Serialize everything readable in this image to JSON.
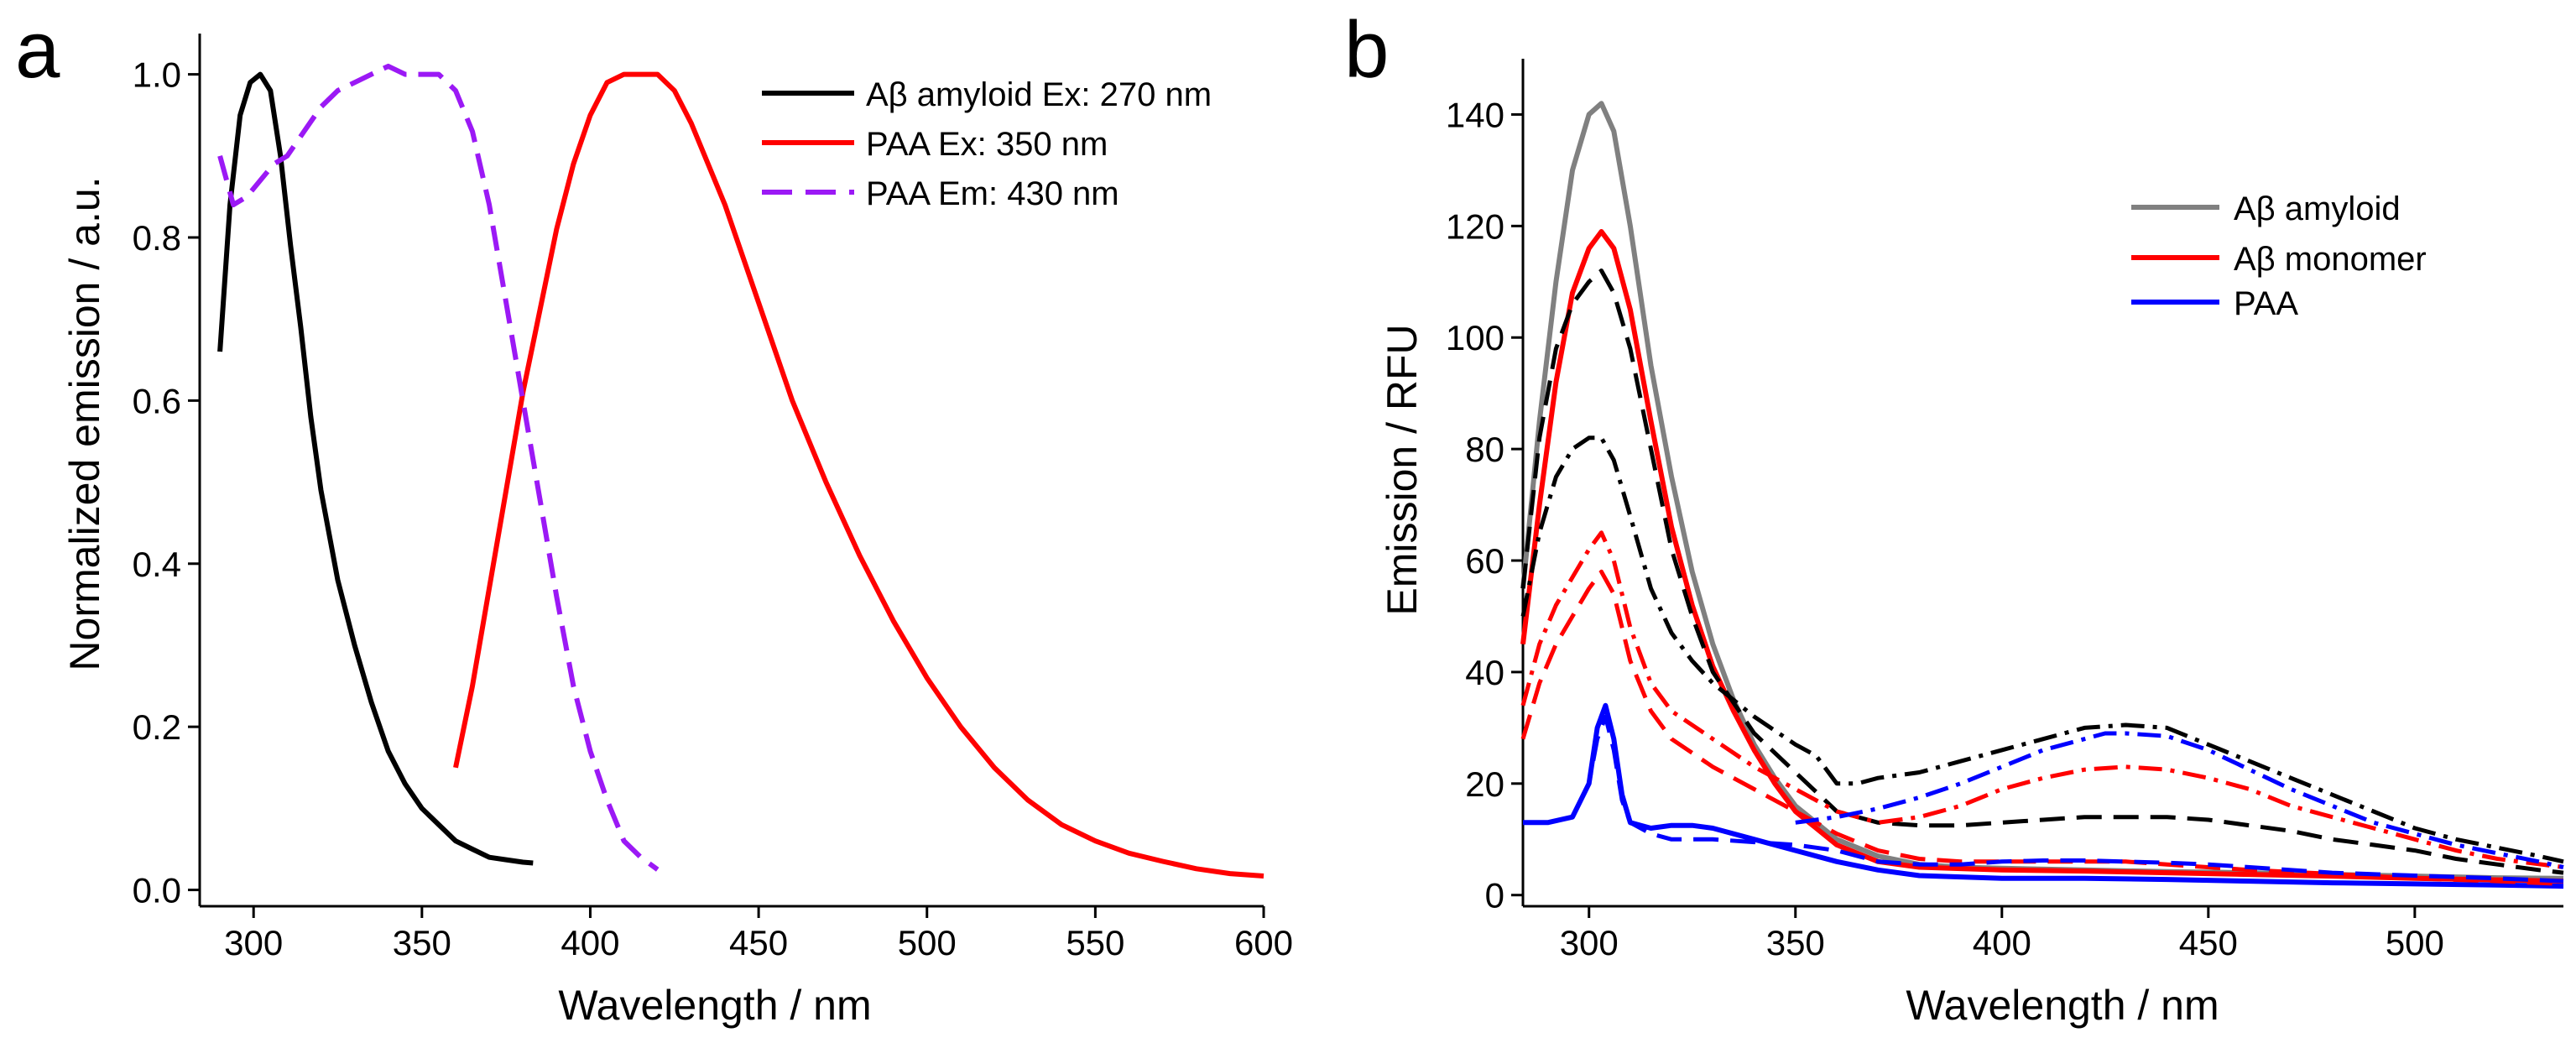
{
  "chart_data": [
    {
      "panel": "a",
      "type": "line",
      "xlabel": "Wavelength / nm",
      "ylabel": "Normalized emission / a.u.",
      "xlim": [
        284,
        600
      ],
      "ylim": [
        -0.02,
        1.05
      ],
      "xticks": [
        300,
        350,
        400,
        450,
        500,
        550,
        600
      ],
      "yticks": [
        0.0,
        0.2,
        0.4,
        0.6,
        0.8,
        1.0
      ],
      "ytick_labels": [
        "0.0",
        "0.2",
        "0.4",
        "0.6",
        "0.8",
        "1.0"
      ],
      "legend_position": "top-right",
      "series": [
        {
          "name": "Aβ amyloid Ex: 270 nm",
          "color": "#000000",
          "style": "solid",
          "x": [
            290,
            293,
            296,
            299,
            302,
            305,
            308,
            311,
            314,
            317,
            320,
            325,
            330,
            335,
            340,
            345,
            350,
            355,
            360,
            365,
            370,
            375,
            380,
            383
          ],
          "y": [
            0.66,
            0.84,
            0.95,
            0.99,
            1.0,
            0.98,
            0.9,
            0.79,
            0.69,
            0.58,
            0.49,
            0.38,
            0.3,
            0.23,
            0.17,
            0.13,
            0.1,
            0.08,
            0.06,
            0.05,
            0.04,
            0.037,
            0.034,
            0.033
          ]
        },
        {
          "name": "PAA Ex: 350 nm",
          "color": "#ff0000",
          "style": "solid",
          "x": [
            360,
            365,
            370,
            375,
            380,
            385,
            390,
            395,
            400,
            405,
            410,
            415,
            420,
            425,
            430,
            435,
            440,
            450,
            460,
            470,
            480,
            490,
            500,
            510,
            520,
            530,
            540,
            550,
            560,
            570,
            580,
            590,
            600
          ],
          "y": [
            0.15,
            0.25,
            0.37,
            0.49,
            0.61,
            0.71,
            0.81,
            0.89,
            0.95,
            0.99,
            1.0,
            1.0,
            1.0,
            0.98,
            0.94,
            0.89,
            0.84,
            0.72,
            0.6,
            0.5,
            0.41,
            0.33,
            0.26,
            0.2,
            0.15,
            0.11,
            0.08,
            0.06,
            0.045,
            0.035,
            0.026,
            0.02,
            0.017
          ]
        },
        {
          "name": "PAA Em: 430 nm",
          "color": "#9b19f5",
          "style": "dashed",
          "x": [
            290,
            294,
            298,
            302,
            306,
            310,
            315,
            320,
            325,
            330,
            335,
            340,
            345,
            350,
            355,
            360,
            365,
            370,
            375,
            380,
            385,
            390,
            395,
            400,
            405,
            410,
            415,
            420
          ],
          "y": [
            0.9,
            0.84,
            0.85,
            0.87,
            0.89,
            0.9,
            0.93,
            0.96,
            0.98,
            0.99,
            1.0,
            1.01,
            1.0,
            1.0,
            1.0,
            0.98,
            0.93,
            0.84,
            0.72,
            0.6,
            0.48,
            0.36,
            0.25,
            0.17,
            0.11,
            0.06,
            0.04,
            0.025
          ]
        }
      ]
    },
    {
      "panel": "b",
      "type": "line",
      "xlabel": "Wavelength / nm",
      "ylabel": "Emission / RFU",
      "xlim": [
        284,
        536
      ],
      "ylim": [
        -2,
        150
      ],
      "xticks": [
        300,
        350,
        400,
        450,
        500
      ],
      "yticks": [
        0,
        20,
        40,
        60,
        80,
        100,
        120,
        140
      ],
      "ytick_labels": [
        "0",
        "20",
        "40",
        "60",
        "80",
        "100",
        "120",
        "140"
      ],
      "legend_position": "center-right",
      "legend": [
        {
          "name": "Aβ amyloid",
          "color": "#808080"
        },
        {
          "name": "Aβ monomer",
          "color": "#ff0000"
        },
        {
          "name": "PAA",
          "color": "#0000ff"
        }
      ],
      "series": [
        {
          "name": "Aβ amyloid (solid)",
          "color": "#808080",
          "style": "solid",
          "width": 6,
          "x": [
            284,
            288,
            292,
            296,
            300,
            303,
            306,
            310,
            315,
            320,
            325,
            330,
            335,
            340,
            345,
            350,
            360,
            370,
            380,
            390,
            400,
            420,
            440,
            460,
            480,
            500,
            520,
            536
          ],
          "y": [
            55,
            85,
            110,
            130,
            140,
            142,
            137,
            120,
            95,
            75,
            58,
            45,
            35,
            27,
            21,
            16,
            10,
            7,
            5.5,
            5,
            4.8,
            4.5,
            4.2,
            4,
            3.7,
            3.4,
            3.1,
            3
          ]
        },
        {
          "name": "Aβ monomer (solid)",
          "color": "#ff0000",
          "style": "solid",
          "width": 6,
          "x": [
            284,
            288,
            292,
            296,
            300,
            303,
            306,
            310,
            315,
            320,
            325,
            330,
            335,
            340,
            345,
            350,
            360,
            370,
            380,
            400,
            420,
            440,
            460,
            480,
            500,
            536
          ],
          "y": [
            45,
            70,
            92,
            108,
            116,
            119,
            116,
            105,
            85,
            66,
            52,
            41,
            33,
            26,
            20,
            15,
            9,
            6,
            5,
            4.5,
            4.3,
            4,
            3.7,
            3.4,
            3,
            2.5
          ]
        },
        {
          "name": "PAA (solid)",
          "color": "#0000ff",
          "style": "solid",
          "width": 6,
          "x": [
            284,
            290,
            296,
            300,
            302,
            304,
            306,
            308,
            310,
            315,
            320,
            325,
            330,
            340,
            350,
            360,
            370,
            380,
            400,
            420,
            440,
            460,
            480,
            500,
            520,
            536
          ],
          "y": [
            13,
            13,
            14,
            20,
            30,
            34,
            28,
            18,
            13,
            12,
            12.5,
            12.5,
            12,
            10,
            8,
            6,
            4.5,
            3.5,
            3,
            3,
            2.8,
            2.5,
            2.2,
            2,
            1.8,
            1.6
          ]
        },
        {
          "name": "Aβ amyloid dashed",
          "color": "#000000",
          "style": "dashed",
          "width": 5,
          "x": [
            284,
            288,
            292,
            296,
            300,
            303,
            306,
            310,
            315,
            320,
            325,
            330,
            340,
            350,
            360,
            370,
            380,
            390,
            400,
            410,
            420,
            430,
            440,
            450,
            460,
            470,
            480,
            490,
            500,
            510,
            520,
            530,
            536
          ],
          "y": [
            55,
            82,
            98,
            106,
            110,
            112,
            108,
            98,
            80,
            62,
            50,
            40,
            29,
            22,
            15,
            13,
            12.5,
            12.5,
            13,
            13.5,
            14,
            14,
            14,
            13.5,
            12.5,
            11.5,
            10,
            9,
            8,
            6.5,
            5.5,
            4.5,
            4
          ]
        },
        {
          "name": "Aβ amyloid dashdot",
          "color": "#000000",
          "style": "dashdot",
          "width": 5,
          "x": [
            284,
            288,
            292,
            296,
            300,
            303,
            306,
            310,
            315,
            320,
            325,
            330,
            340,
            350,
            355,
            360,
            365,
            370,
            380,
            390,
            400,
            410,
            420,
            430,
            440,
            450,
            460,
            470,
            480,
            490,
            500,
            510,
            520,
            530,
            536
          ],
          "y": [
            50,
            65,
            75,
            80,
            82,
            82,
            78,
            68,
            55,
            47,
            42,
            38,
            32,
            27,
            25,
            20,
            20,
            21,
            22,
            24,
            26,
            28,
            30,
            30.5,
            30,
            27,
            24,
            21,
            18,
            15,
            12,
            10,
            8.5,
            7,
            6
          ]
        },
        {
          "name": "Aβ monomer dashed",
          "color": "#ff0000",
          "style": "dashed",
          "width": 5,
          "x": [
            284,
            288,
            292,
            296,
            300,
            303,
            306,
            310,
            315,
            320,
            330,
            340,
            350,
            360,
            370,
            380,
            390,
            400,
            410,
            420,
            430,
            440,
            460,
            480,
            500,
            520,
            536
          ],
          "y": [
            28,
            38,
            45,
            50,
            55,
            58,
            54,
            42,
            33,
            28,
            23,
            19,
            15,
            11,
            8,
            6.5,
            6,
            6,
            6,
            6,
            6,
            5.5,
            4.5,
            3.8,
            3,
            2.5,
            2
          ]
        },
        {
          "name": "Aβ monomer dashdot",
          "color": "#ff0000",
          "style": "dashdot",
          "width": 5,
          "x": [
            284,
            288,
            292,
            296,
            300,
            303,
            306,
            310,
            315,
            320,
            330,
            340,
            350,
            360,
            370,
            380,
            390,
            400,
            410,
            420,
            430,
            440,
            450,
            460,
            470,
            480,
            490,
            500,
            510,
            520,
            536
          ],
          "y": [
            34,
            45,
            52,
            57,
            62,
            65,
            60,
            48,
            38,
            33,
            28,
            23,
            19,
            15,
            13,
            14,
            16,
            19,
            21,
            22.5,
            23,
            22.5,
            21,
            19,
            16,
            14,
            12,
            10,
            8,
            6.5,
            5
          ]
        },
        {
          "name": "PAA dashed",
          "color": "#0000ff",
          "style": "dashed",
          "width": 5,
          "x": [
            284,
            290,
            296,
            300,
            302,
            304,
            306,
            308,
            310,
            315,
            320,
            330,
            340,
            350,
            360,
            370,
            380,
            390,
            400,
            410,
            420,
            430,
            440,
            450,
            460,
            480,
            500,
            520,
            536
          ],
          "y": [
            13,
            13,
            14,
            20,
            28,
            32,
            26,
            17,
            13,
            11,
            10,
            10,
            9.5,
            9,
            8,
            6,
            5.5,
            5.5,
            6,
            6.2,
            6.2,
            6,
            5.8,
            5.5,
            5,
            4,
            3.5,
            3,
            2.5
          ]
        },
        {
          "name": "PAA dashdot",
          "color": "#0000ff",
          "style": "dashdot",
          "width": 5,
          "x": [
            350,
            360,
            370,
            380,
            390,
            400,
            410,
            420,
            425,
            430,
            440,
            450,
            460,
            470,
            480,
            490,
            500,
            510,
            520,
            530,
            536
          ],
          "y": [
            13,
            14,
            15.5,
            17.5,
            20,
            23,
            26,
            28,
            29,
            29,
            28.5,
            26,
            22.5,
            19,
            16,
            13,
            11,
            9,
            7.5,
            6,
            5
          ]
        }
      ]
    }
  ],
  "panel_labels": {
    "a": "a",
    "b": "b"
  }
}
